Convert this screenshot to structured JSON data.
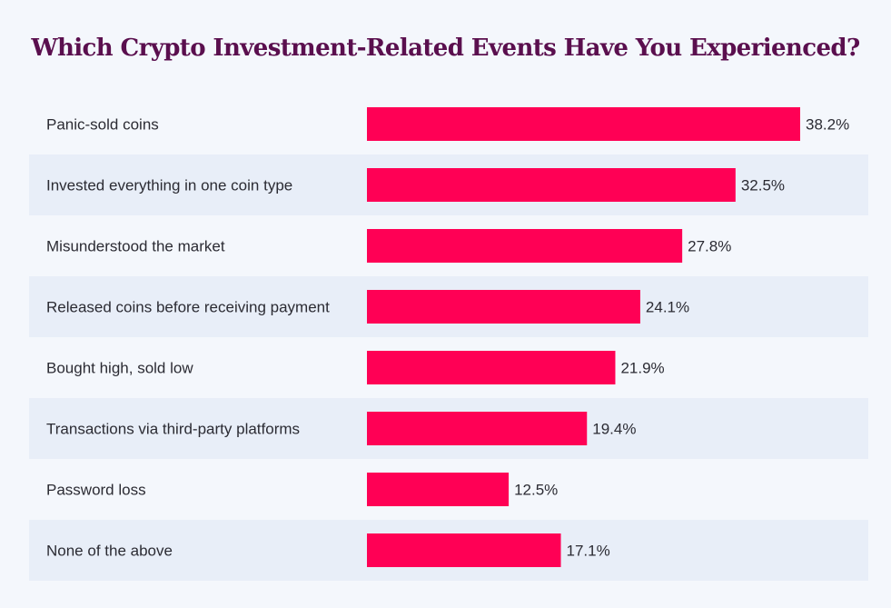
{
  "chart_data": {
    "type": "bar",
    "orientation": "horizontal",
    "title": "Which Crypto Investment-Related Events Have You Experienced?",
    "categories": [
      "Panic-sold coins",
      "Invested everything in one coin type",
      "Misunderstood the market",
      "Released coins before receiving payment",
      "Bought high, sold low",
      "Transactions via third-party platforms",
      "Password loss",
      "None of the above"
    ],
    "values": [
      38.2,
      32.5,
      27.8,
      24.1,
      21.9,
      19.4,
      12.5,
      17.1
    ],
    "value_labels": [
      "38.2%",
      "32.5%",
      "27.8%",
      "24.1%",
      "21.9%",
      "19.4%",
      "12.5%",
      "17.1%"
    ],
    "unit": "%",
    "xlabel": "",
    "ylabel": "",
    "xlim": [
      0,
      38.2
    ],
    "grid": false,
    "colors": {
      "bar": "#ff0055",
      "title": "#5a0f4e",
      "stripe": "#e8eef8",
      "background": "#f4f7fc",
      "text": "#2b2b33"
    }
  }
}
